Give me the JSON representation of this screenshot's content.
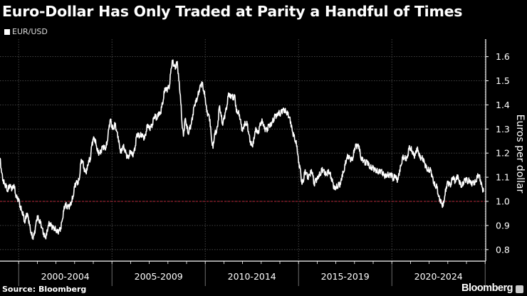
{
  "chart_data": {
    "type": "line",
    "title": "Euro-Dollar Has Only Traded at Parity a Handful of Times",
    "legend": [
      "EUR/USD"
    ],
    "legend_placement": "top-left",
    "ylabel": "Euros per dollar",
    "xlabel": "",
    "ylim": [
      0.75,
      1.65
    ],
    "yticks": [
      "0.8",
      "0.9",
      "1.0",
      "1.1",
      "1.2",
      "1.3",
      "1.4",
      "1.5",
      "1.6"
    ],
    "x_period_labels": [
      "2000-2004",
      "2005-2009",
      "2010-2014",
      "2015-2019",
      "2020-2024"
    ],
    "x_start_year": 1999,
    "x_frequency": "monthly",
    "reference_line": {
      "value": 1.0,
      "color": "#c0283a",
      "style": "dashed"
    },
    "grid": true,
    "series": [
      {
        "name": "EUR/USD",
        "color": "#ffffff",
        "values": [
          1.18,
          1.12,
          1.09,
          1.07,
          1.06,
          1.04,
          1.07,
          1.06,
          1.05,
          1.07,
          1.03,
          1.01,
          1.01,
          0.98,
          0.96,
          0.94,
          0.91,
          0.95,
          0.94,
          0.9,
          0.87,
          0.85,
          0.86,
          0.9,
          0.94,
          0.92,
          0.91,
          0.89,
          0.87,
          0.85,
          0.86,
          0.9,
          0.91,
          0.9,
          0.89,
          0.89,
          0.88,
          0.87,
          0.88,
          0.89,
          0.92,
          0.96,
          0.99,
          0.98,
          0.98,
          0.98,
          1.0,
          1.02,
          1.06,
          1.08,
          1.08,
          1.09,
          1.16,
          1.17,
          1.14,
          1.12,
          1.13,
          1.17,
          1.17,
          1.23,
          1.26,
          1.26,
          1.23,
          1.2,
          1.2,
          1.21,
          1.23,
          1.22,
          1.22,
          1.25,
          1.3,
          1.34,
          1.31,
          1.3,
          1.32,
          1.29,
          1.27,
          1.22,
          1.2,
          1.23,
          1.22,
          1.2,
          1.18,
          1.19,
          1.21,
          1.19,
          1.2,
          1.23,
          1.28,
          1.27,
          1.27,
          1.28,
          1.27,
          1.26,
          1.29,
          1.32,
          1.3,
          1.31,
          1.32,
          1.35,
          1.35,
          1.34,
          1.37,
          1.36,
          1.39,
          1.42,
          1.47,
          1.46,
          1.47,
          1.48,
          1.55,
          1.58,
          1.56,
          1.56,
          1.58,
          1.5,
          1.44,
          1.33,
          1.27,
          1.34,
          1.32,
          1.28,
          1.3,
          1.32,
          1.36,
          1.4,
          1.41,
          1.43,
          1.46,
          1.48,
          1.49,
          1.46,
          1.43,
          1.37,
          1.36,
          1.34,
          1.26,
          1.22,
          1.28,
          1.29,
          1.31,
          1.39,
          1.37,
          1.32,
          1.34,
          1.37,
          1.4,
          1.45,
          1.43,
          1.44,
          1.43,
          1.44,
          1.37,
          1.37,
          1.36,
          1.32,
          1.29,
          1.32,
          1.32,
          1.32,
          1.28,
          1.25,
          1.23,
          1.24,
          1.29,
          1.3,
          1.28,
          1.31,
          1.33,
          1.33,
          1.3,
          1.3,
          1.3,
          1.32,
          1.31,
          1.33,
          1.34,
          1.36,
          1.35,
          1.37,
          1.36,
          1.37,
          1.38,
          1.38,
          1.37,
          1.36,
          1.35,
          1.33,
          1.29,
          1.27,
          1.25,
          1.23,
          1.16,
          1.14,
          1.08,
          1.08,
          1.12,
          1.12,
          1.1,
          1.11,
          1.12,
          1.12,
          1.07,
          1.09,
          1.09,
          1.11,
          1.11,
          1.13,
          1.13,
          1.12,
          1.11,
          1.12,
          1.12,
          1.1,
          1.08,
          1.05,
          1.06,
          1.06,
          1.07,
          1.07,
          1.11,
          1.12,
          1.15,
          1.18,
          1.19,
          1.18,
          1.17,
          1.18,
          1.22,
          1.23,
          1.23,
          1.23,
          1.18,
          1.17,
          1.17,
          1.16,
          1.17,
          1.15,
          1.14,
          1.14,
          1.14,
          1.13,
          1.13,
          1.12,
          1.12,
          1.13,
          1.12,
          1.11,
          1.1,
          1.11,
          1.11,
          1.11,
          1.11,
          1.09,
          1.11,
          1.09,
          1.09,
          1.13,
          1.15,
          1.18,
          1.18,
          1.18,
          1.18,
          1.22,
          1.22,
          1.21,
          1.19,
          1.19,
          1.22,
          1.21,
          1.18,
          1.18,
          1.18,
          1.16,
          1.14,
          1.13,
          1.13,
          1.13,
          1.1,
          1.08,
          1.06,
          1.06,
          1.02,
          1.01,
          0.99,
          0.98,
          1.02,
          1.06,
          1.08,
          1.07,
          1.07,
          1.1,
          1.09,
          1.08,
          1.11,
          1.09,
          1.07,
          1.06,
          1.08,
          1.09,
          1.09,
          1.08,
          1.09,
          1.07,
          1.08,
          1.08,
          1.08,
          1.1,
          1.11,
          1.09,
          1.06,
          1.04
        ]
      }
    ],
    "source": "Source: Bloomberg",
    "brand": "Bloomberg"
  }
}
